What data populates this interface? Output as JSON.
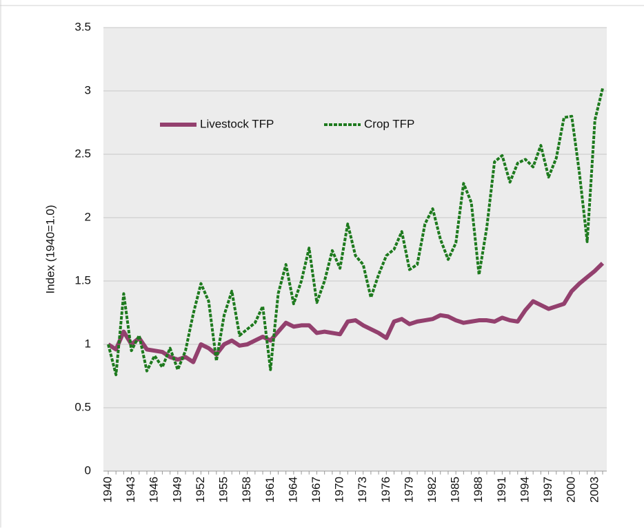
{
  "chart_data": {
    "type": "line",
    "y_label": "Index (1940=1.0)",
    "categories": [
      "1940",
      null,
      null,
      "1943",
      null,
      null,
      "1946",
      null,
      null,
      "1949",
      null,
      null,
      "1952",
      null,
      null,
      "1955",
      null,
      null,
      "1958",
      null,
      null,
      "1961",
      null,
      null,
      "1964",
      null,
      null,
      "1967",
      null,
      null,
      "1970",
      null,
      null,
      "1973",
      null,
      null,
      "1976",
      null,
      null,
      "1979",
      null,
      null,
      "1982",
      null,
      null,
      "1985",
      null,
      null,
      "1988",
      null,
      null,
      "1991",
      null,
      null,
      "1994",
      null,
      null,
      "1997",
      null,
      null,
      "2000",
      null,
      null,
      "2003",
      null
    ],
    "series": [
      {
        "name": "Livestock TFP",
        "color": "#93406e",
        "dashed": false,
        "values": [
          1.0,
          0.96,
          1.1,
          1.0,
          1.05,
          0.96,
          0.95,
          0.94,
          0.9,
          0.88,
          0.9,
          0.86,
          1.0,
          0.97,
          0.92,
          1.0,
          1.03,
          0.99,
          1.0,
          1.03,
          1.06,
          1.03,
          1.1,
          1.17,
          1.14,
          1.15,
          1.15,
          1.09,
          1.1,
          1.09,
          1.08,
          1.18,
          1.19,
          1.15,
          1.12,
          1.09,
          1.05,
          1.18,
          1.2,
          1.16,
          1.18,
          1.19,
          1.2,
          1.23,
          1.22,
          1.19,
          1.17,
          1.18,
          1.19,
          1.19,
          1.18,
          1.21,
          1.19,
          1.18,
          1.27,
          1.34,
          1.31,
          1.28,
          1.3,
          1.32,
          1.42,
          1.48,
          1.53,
          1.58,
          1.64
        ]
      },
      {
        "name": "Crop TFP",
        "color": "#1e7a1e",
        "dashed": true,
        "values": [
          1.0,
          0.76,
          1.4,
          0.95,
          1.07,
          0.79,
          0.91,
          0.82,
          0.97,
          0.8,
          0.95,
          1.24,
          1.48,
          1.34,
          0.87,
          1.23,
          1.42,
          1.07,
          1.12,
          1.17,
          1.3,
          0.8,
          1.4,
          1.63,
          1.32,
          1.5,
          1.76,
          1.33,
          1.5,
          1.74,
          1.6,
          1.95,
          1.7,
          1.63,
          1.37,
          1.55,
          1.7,
          1.75,
          1.89,
          1.59,
          1.63,
          1.95,
          2.07,
          1.83,
          1.67,
          1.8,
          2.27,
          2.12,
          1.55,
          1.92,
          2.44,
          2.49,
          2.28,
          2.43,
          2.46,
          2.4,
          2.57,
          2.32,
          2.47,
          2.79,
          2.8,
          2.35,
          1.81,
          2.77,
          3.02
        ]
      }
    ],
    "ylim": [
      0,
      3.5
    ],
    "yticks": [
      0,
      0.5,
      1,
      1.5,
      2,
      2.5,
      3,
      3.5
    ],
    "grid": true
  }
}
